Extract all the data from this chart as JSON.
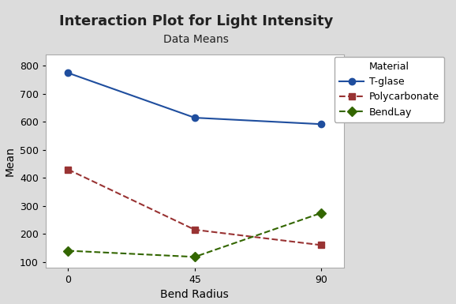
{
  "title": "Interaction Plot for Light Intensity",
  "subtitle": "Data Means",
  "xlabel": "Bend Radius",
  "ylabel": "Mean",
  "x_values": [
    0,
    45,
    90
  ],
  "x_tick_labels": [
    "0",
    "45",
    "90"
  ],
  "series": [
    {
      "label": "T-glase",
      "values": [
        775,
        615,
        592
      ],
      "color": "#1f4e9e",
      "linestyle": "-",
      "marker": "o",
      "markerfacecolor": "#1f4e9e",
      "marker_size": 6,
      "linewidth": 1.5
    },
    {
      "label": "Polycarbonate",
      "values": [
        430,
        215,
        160
      ],
      "color": "#993333",
      "linestyle": "--",
      "marker": "s",
      "markerfacecolor": "#993333",
      "marker_size": 6,
      "linewidth": 1.5
    },
    {
      "label": "BendLay",
      "values": [
        140,
        118,
        275
      ],
      "color": "#336600",
      "linestyle": "--",
      "marker": "D",
      "markerfacecolor": "#336600",
      "marker_size": 6,
      "linewidth": 1.5
    }
  ],
  "ylim": [
    80,
    840
  ],
  "yticks": [
    100,
    200,
    300,
    400,
    500,
    600,
    700,
    800
  ],
  "xlim": [
    -8,
    98
  ],
  "background_color": "#dcdcdc",
  "plot_bg_color": "#ffffff",
  "legend_title": "Material",
  "title_fontsize": 13,
  "subtitle_fontsize": 10,
  "axis_label_fontsize": 10,
  "tick_fontsize": 9,
  "legend_fontsize": 9
}
